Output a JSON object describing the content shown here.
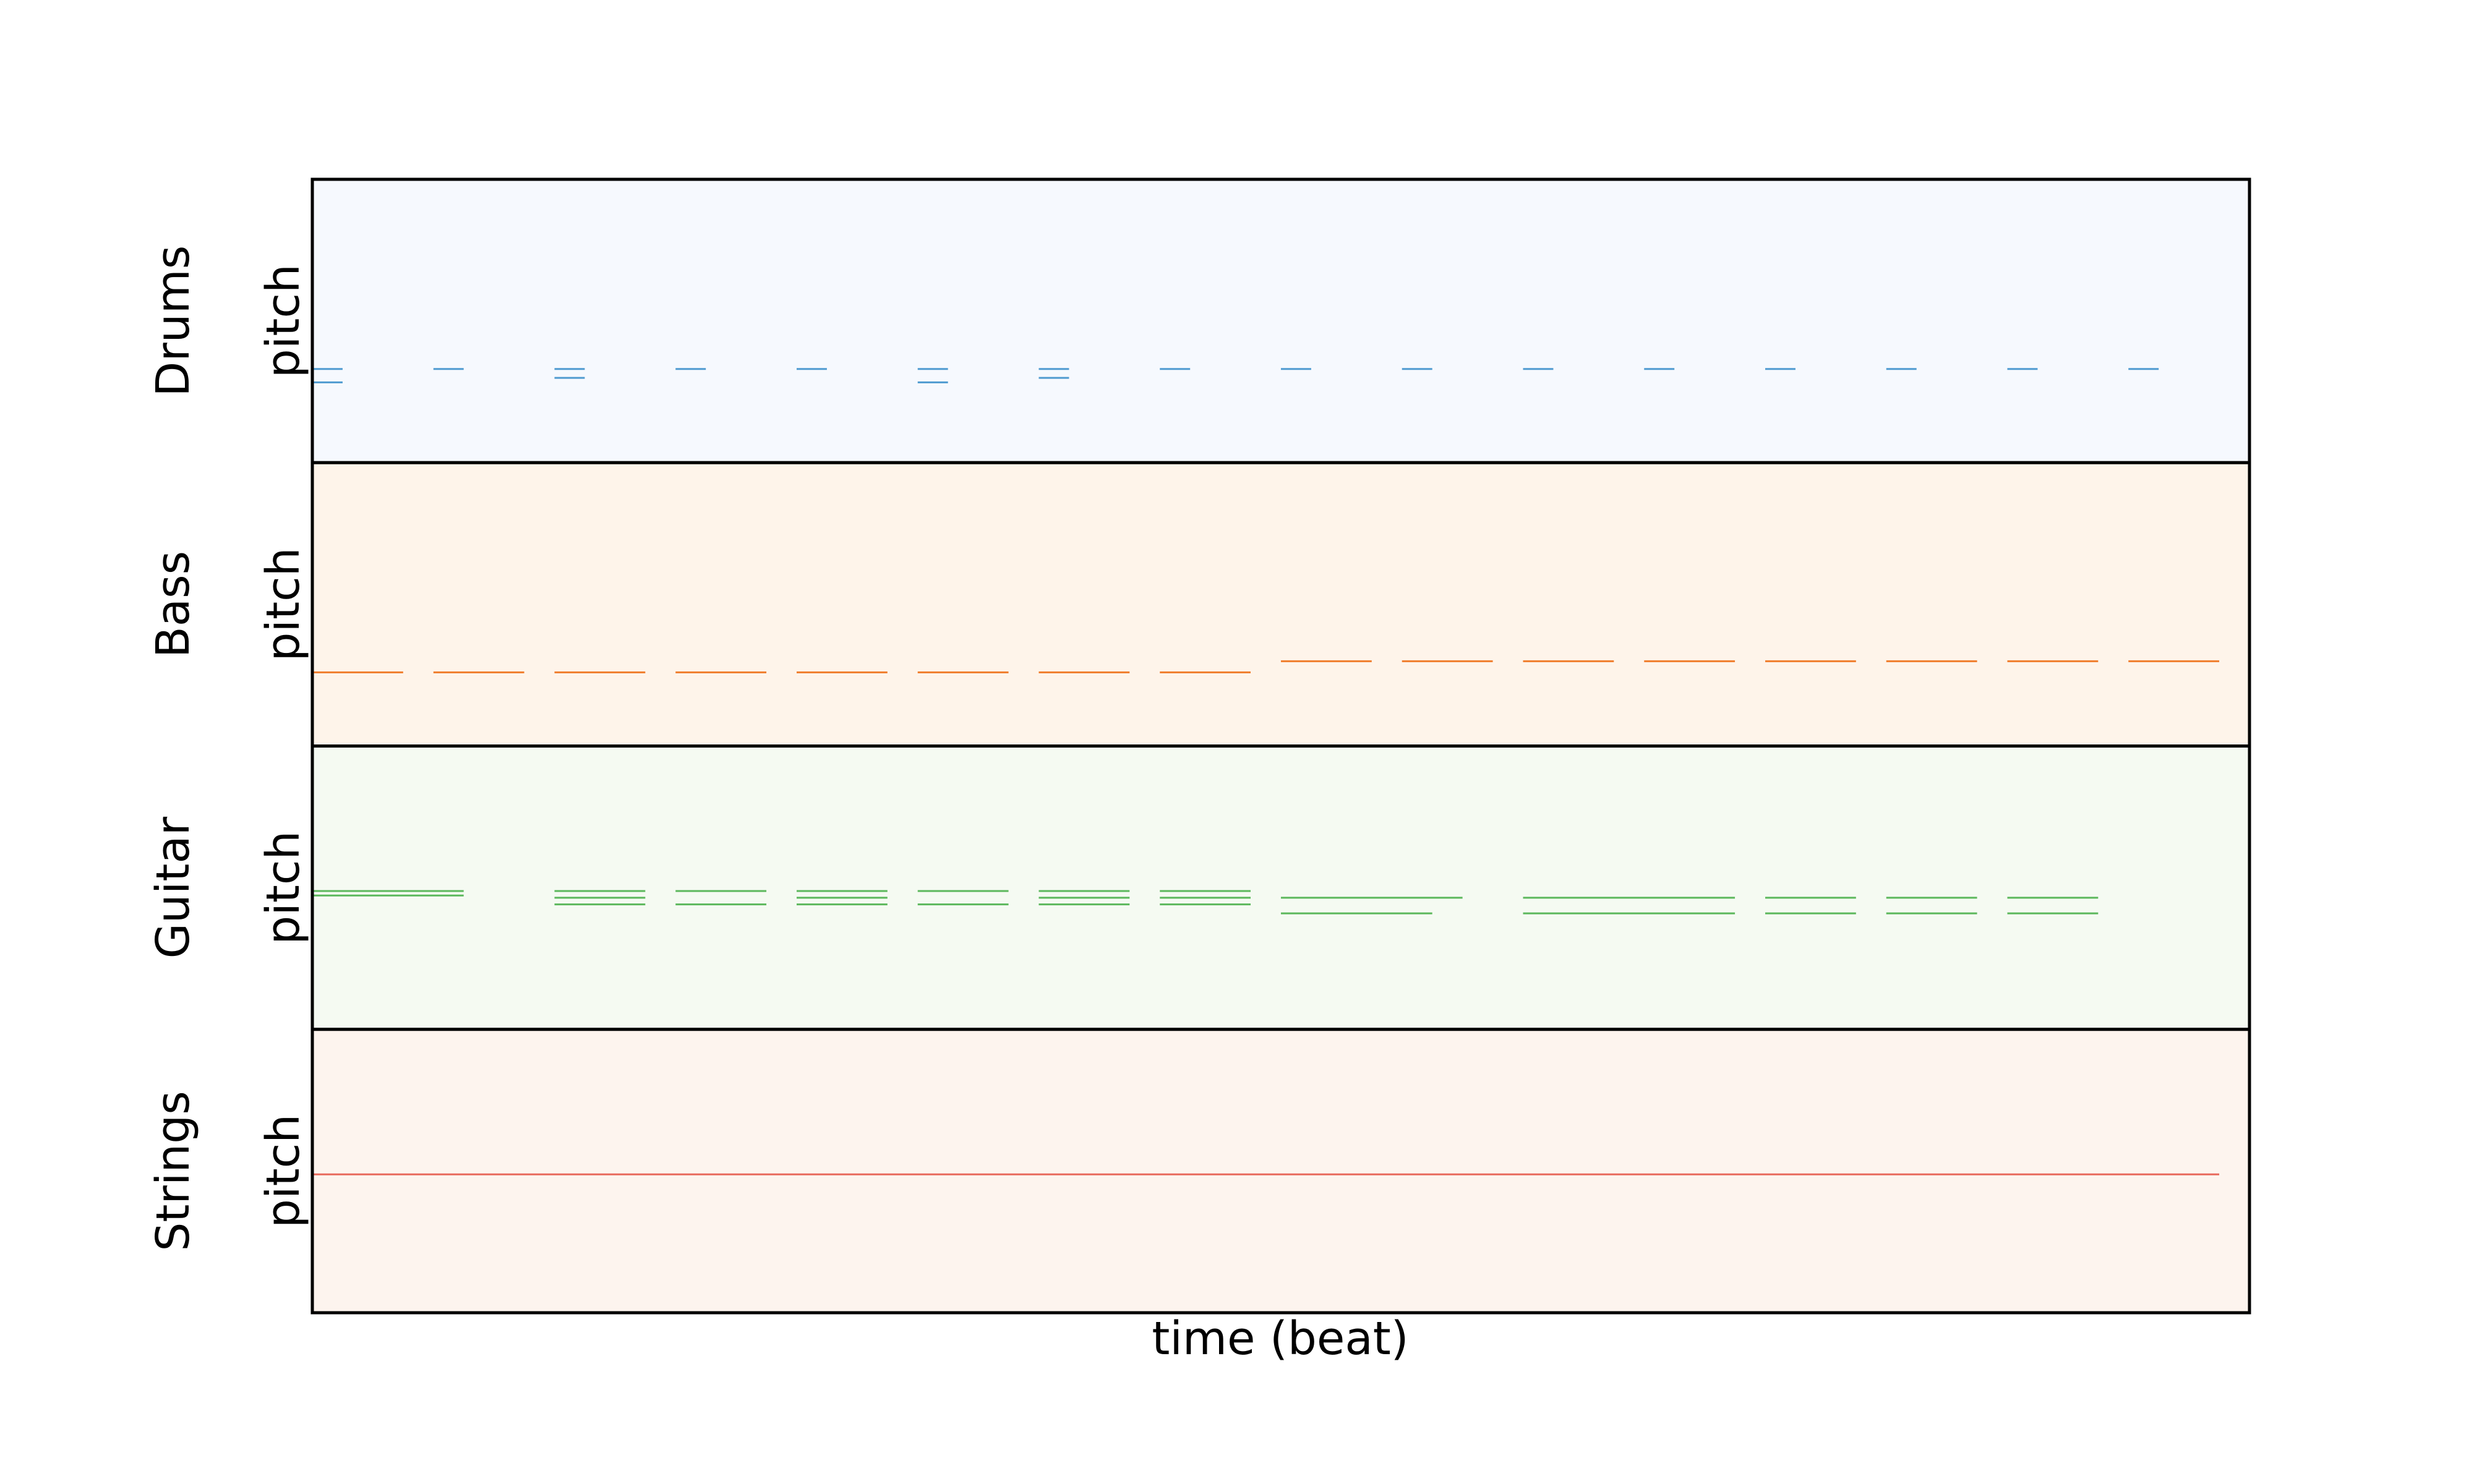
{
  "chart_data": {
    "type": "pianoroll",
    "xlabel": "time (beat)",
    "xlim": [
      0,
      64
    ],
    "grid": false,
    "tracks": [
      {
        "name": "Drums",
        "ylabel": "pitch",
        "color": "#4f9bd0",
        "background": "#f6f9fe",
        "ylim": [
          0,
          127
        ],
        "notes": [
          {
            "start": 0,
            "duration": 1,
            "pitch": 42
          },
          {
            "start": 0,
            "duration": 1,
            "pitch": 36
          },
          {
            "start": 4,
            "duration": 1,
            "pitch": 42
          },
          {
            "start": 8,
            "duration": 1,
            "pitch": 42
          },
          {
            "start": 8,
            "duration": 1,
            "pitch": 38
          },
          {
            "start": 12,
            "duration": 1,
            "pitch": 42
          },
          {
            "start": 16,
            "duration": 1,
            "pitch": 42
          },
          {
            "start": 20,
            "duration": 1,
            "pitch": 42
          },
          {
            "start": 20,
            "duration": 1,
            "pitch": 36
          },
          {
            "start": 24,
            "duration": 1,
            "pitch": 42
          },
          {
            "start": 24,
            "duration": 1,
            "pitch": 38
          },
          {
            "start": 28,
            "duration": 1,
            "pitch": 42
          },
          {
            "start": 32,
            "duration": 1,
            "pitch": 42
          },
          {
            "start": 36,
            "duration": 1,
            "pitch": 42
          },
          {
            "start": 40,
            "duration": 1,
            "pitch": 42
          },
          {
            "start": 44,
            "duration": 1,
            "pitch": 42
          },
          {
            "start": 48,
            "duration": 1,
            "pitch": 42
          },
          {
            "start": 52,
            "duration": 1,
            "pitch": 42
          },
          {
            "start": 56,
            "duration": 1,
            "pitch": 42
          },
          {
            "start": 60,
            "duration": 1,
            "pitch": 42
          }
        ]
      },
      {
        "name": "Bass",
        "ylabel": "pitch",
        "color": "#f07d2c",
        "background": "#fef4ea",
        "ylim": [
          0,
          127
        ],
        "notes": [
          {
            "start": 0,
            "duration": 3,
            "pitch": 33
          },
          {
            "start": 4,
            "duration": 3,
            "pitch": 33
          },
          {
            "start": 8,
            "duration": 3,
            "pitch": 33
          },
          {
            "start": 12,
            "duration": 3,
            "pitch": 33
          },
          {
            "start": 16,
            "duration": 3,
            "pitch": 33
          },
          {
            "start": 20,
            "duration": 3,
            "pitch": 33
          },
          {
            "start": 24,
            "duration": 3,
            "pitch": 33
          },
          {
            "start": 28,
            "duration": 3,
            "pitch": 33
          },
          {
            "start": 32,
            "duration": 3,
            "pitch": 38
          },
          {
            "start": 36,
            "duration": 3,
            "pitch": 38
          },
          {
            "start": 40,
            "duration": 3,
            "pitch": 38
          },
          {
            "start": 44,
            "duration": 3,
            "pitch": 38
          },
          {
            "start": 48,
            "duration": 3,
            "pitch": 38
          },
          {
            "start": 52,
            "duration": 3,
            "pitch": 38
          },
          {
            "start": 56,
            "duration": 3,
            "pitch": 38
          },
          {
            "start": 60,
            "duration": 3,
            "pitch": 38
          }
        ]
      },
      {
        "name": "Guitar",
        "ylabel": "pitch",
        "color": "#5cb85c",
        "background": "#f5faf2",
        "ylim": [
          0,
          127
        ],
        "notes": [
          {
            "start": 0,
            "duration": 5,
            "pitch": 62
          },
          {
            "start": 0,
            "duration": 5,
            "pitch": 60
          },
          {
            "start": 8,
            "duration": 3,
            "pitch": 62
          },
          {
            "start": 8,
            "duration": 3,
            "pitch": 59
          },
          {
            "start": 8,
            "duration": 3,
            "pitch": 56
          },
          {
            "start": 12,
            "duration": 3,
            "pitch": 62
          },
          {
            "start": 12,
            "duration": 3,
            "pitch": 56
          },
          {
            "start": 16,
            "duration": 3,
            "pitch": 62
          },
          {
            "start": 16,
            "duration": 3,
            "pitch": 59
          },
          {
            "start": 16,
            "duration": 3,
            "pitch": 56
          },
          {
            "start": 20,
            "duration": 3,
            "pitch": 62
          },
          {
            "start": 20,
            "duration": 3,
            "pitch": 56
          },
          {
            "start": 24,
            "duration": 3,
            "pitch": 62
          },
          {
            "start": 24,
            "duration": 3,
            "pitch": 59
          },
          {
            "start": 24,
            "duration": 3,
            "pitch": 56
          },
          {
            "start": 28,
            "duration": 3,
            "pitch": 62
          },
          {
            "start": 28,
            "duration": 3,
            "pitch": 59
          },
          {
            "start": 28,
            "duration": 3,
            "pitch": 56
          },
          {
            "start": 32,
            "duration": 6,
            "pitch": 59
          },
          {
            "start": 32,
            "duration": 5,
            "pitch": 52
          },
          {
            "start": 40,
            "duration": 7,
            "pitch": 59
          },
          {
            "start": 40,
            "duration": 7,
            "pitch": 52
          },
          {
            "start": 48,
            "duration": 3,
            "pitch": 59
          },
          {
            "start": 48,
            "duration": 3,
            "pitch": 52
          },
          {
            "start": 52,
            "duration": 3,
            "pitch": 59
          },
          {
            "start": 52,
            "duration": 3,
            "pitch": 52
          },
          {
            "start": 56,
            "duration": 3,
            "pitch": 59
          },
          {
            "start": 56,
            "duration": 3,
            "pitch": 52
          }
        ]
      },
      {
        "name": "Strings",
        "ylabel": "pitch",
        "color": "#e8695c",
        "background": "#fdf4ee",
        "ylim": [
          0,
          127
        ],
        "notes": [
          {
            "start": 0,
            "duration": 63,
            "pitch": 62
          }
        ]
      }
    ]
  }
}
